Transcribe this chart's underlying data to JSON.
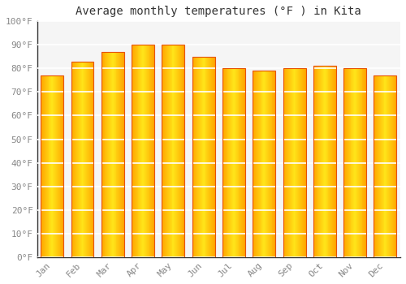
{
  "title": "Average monthly temperatures (°F ) in Kita",
  "months": [
    "Jan",
    "Feb",
    "Mar",
    "Apr",
    "May",
    "Jun",
    "Jul",
    "Aug",
    "Sep",
    "Oct",
    "Nov",
    "Dec"
  ],
  "values": [
    77,
    83,
    87,
    90,
    90,
    85,
    80,
    79,
    80,
    81,
    80,
    77
  ],
  "bar_color_center": "#FFD54F",
  "bar_color_edge": "#F9A825",
  "bar_edge_color": "#E65100",
  "ylim": [
    0,
    100
  ],
  "yticks": [
    0,
    10,
    20,
    30,
    40,
    50,
    60,
    70,
    80,
    90,
    100
  ],
  "ytick_labels": [
    "0°F",
    "10°F",
    "20°F",
    "30°F",
    "40°F",
    "50°F",
    "60°F",
    "70°F",
    "80°F",
    "90°F",
    "100°F"
  ],
  "background_color": "#FFFFFF",
  "plot_bg_color": "#F5F5F5",
  "grid_color": "#FFFFFF",
  "title_fontsize": 10,
  "tick_fontsize": 8,
  "tick_color": "#888888",
  "bar_width": 0.75,
  "left_spine_color": "#333333"
}
